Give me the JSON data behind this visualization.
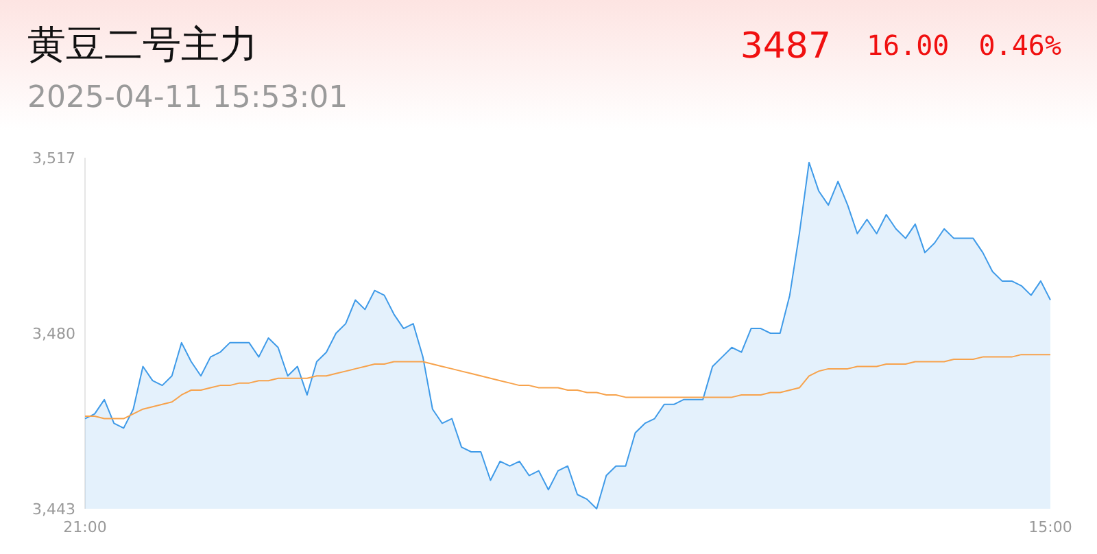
{
  "chart_data": {
    "type": "area",
    "title": "黄豆二号主力",
    "annotations": [
      "2025-04-11 15:53:01",
      "3487",
      "16.00",
      "0.46%"
    ],
    "categories": [
      "21:00",
      null,
      null,
      null,
      null,
      null,
      null,
      null,
      null,
      null,
      null,
      null,
      null,
      null,
      null,
      null,
      null,
      null,
      null,
      null,
      null,
      null,
      null,
      null,
      null,
      null,
      null,
      null,
      null,
      null,
      null,
      null,
      null,
      null,
      null,
      null,
      null,
      null,
      null,
      null,
      null,
      null,
      null,
      null,
      null,
      null,
      null,
      null,
      null,
      null,
      null,
      null,
      null,
      null,
      null,
      null,
      null,
      null,
      null,
      null,
      null,
      null,
      null,
      null,
      null,
      null,
      null,
      null,
      null,
      null,
      null,
      null,
      null,
      null,
      null,
      null,
      null,
      null,
      null,
      null,
      null,
      null,
      null,
      null,
      null,
      null,
      null,
      null,
      null,
      null,
      null,
      null,
      null,
      null,
      null,
      null,
      null,
      null,
      null,
      null,
      "15:00"
    ],
    "series": [
      {
        "color": "#3e9ae8",
        "values": [
          3462,
          3463,
          3466,
          3461,
          3460,
          3464,
          3473,
          3470,
          3469,
          3471,
          3478,
          3474,
          3471,
          3475,
          3476,
          3478,
          3478,
          3478,
          3475,
          3479,
          3477,
          3471,
          3473,
          3467,
          3474,
          3476,
          3480,
          3482,
          3487,
          3485,
          3489,
          3488,
          3484,
          3481,
          3482,
          3475,
          3464,
          3461,
          3462,
          3456,
          3455,
          3455,
          3449,
          3453,
          3452,
          3453,
          3450,
          3451,
          3447,
          3451,
          3452,
          3446,
          3445,
          3443,
          3450,
          3452,
          3452,
          3459,
          3461,
          3462,
          3465,
          3465,
          3466,
          3466,
          3466,
          3473,
          3475,
          3477,
          3476,
          3481,
          3481,
          3480,
          3480,
          3488,
          3501,
          3516,
          3510,
          3507,
          3512,
          3507,
          3501,
          3504,
          3501,
          3505,
          3502,
          3500,
          3503,
          3497,
          3499,
          3502,
          3500,
          3500,
          3500,
          3497,
          3493,
          3491,
          3491,
          3490,
          3488,
          3491,
          3487
        ]
      },
      {
        "type": "line",
        "color": "#f7a24b",
        "values": [
          3462.5,
          3462.5,
          3462,
          3462,
          3462,
          3463,
          3464,
          3464.5,
          3465,
          3465.5,
          3467,
          3468,
          3468,
          3468.5,
          3469,
          3469,
          3469.5,
          3469.5,
          3470,
          3470,
          3470.5,
          3470.5,
          3470.5,
          3470.5,
          3471,
          3471,
          3471.5,
          3472,
          3472.5,
          3473,
          3473.5,
          3473.5,
          3474,
          3474,
          3474,
          3474,
          3473.5,
          3473,
          3472.5,
          3472,
          3471.5,
          3471,
          3470.5,
          3470,
          3469.5,
          3469,
          3469,
          3468.5,
          3468.5,
          3468.5,
          3468,
          3468,
          3467.5,
          3467.5,
          3467,
          3467,
          3466.5,
          3466.5,
          3466.5,
          3466.5,
          3466.5,
          3466.5,
          3466.5,
          3466.5,
          3466.5,
          3466.5,
          3466.5,
          3466.5,
          3467,
          3467,
          3467,
          3467.5,
          3467.5,
          3468,
          3468.5,
          3471,
          3472,
          3472.5,
          3472.5,
          3472.5,
          3473,
          3473,
          3473,
          3473.5,
          3473.5,
          3473.5,
          3474,
          3474,
          3474,
          3474,
          3474.5,
          3474.5,
          3474.5,
          3475,
          3475,
          3475,
          3475,
          3475.5,
          3475.5,
          3475.5,
          3475.5
        ]
      }
    ],
    "ylim": [
      3443,
      3517
    ],
    "yticks": [
      {
        "value": 3443,
        "label": "3,443"
      },
      {
        "value": 3480,
        "label": "3,480"
      },
      {
        "value": 3517,
        "label": "3,517"
      }
    ],
    "grid": false
  }
}
